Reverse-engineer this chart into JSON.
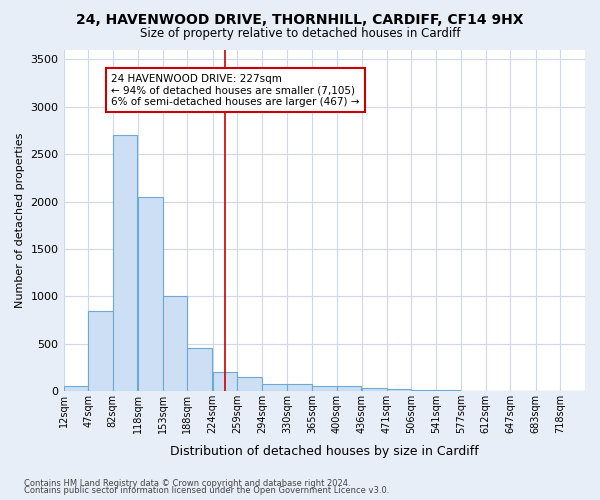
{
  "title1": "24, HAVENWOOD DRIVE, THORNHILL, CARDIFF, CF14 9HX",
  "title2": "Size of property relative to detached houses in Cardiff",
  "xlabel": "Distribution of detached houses by size in Cardiff",
  "ylabel": "Number of detached properties",
  "footnote1": "Contains HM Land Registry data © Crown copyright and database right 2024.",
  "footnote2": "Contains public sector information licensed under the Open Government Licence v3.0.",
  "annotation_line1": "24 HAVENWOOD DRIVE: 227sqm",
  "annotation_line2": "← 94% of detached houses are smaller (7,105)",
  "annotation_line3": "6% of semi-detached houses are larger (467) →",
  "bar_color": "#ccdff5",
  "bar_edge_color": "#6aaad4",
  "vline_color": "#cc0000",
  "vline_x": 224,
  "categories": [
    "12sqm",
    "47sqm",
    "82sqm",
    "118sqm",
    "153sqm",
    "188sqm",
    "224sqm",
    "259sqm",
    "294sqm",
    "330sqm",
    "365sqm",
    "400sqm",
    "436sqm",
    "471sqm",
    "506sqm",
    "541sqm",
    "577sqm",
    "612sqm",
    "647sqm",
    "683sqm",
    "718sqm"
  ],
  "bin_edges": [
    12,
    47,
    82,
    118,
    153,
    188,
    224,
    259,
    294,
    330,
    365,
    400,
    436,
    471,
    506,
    541,
    577,
    612,
    647,
    683,
    718
  ],
  "bin_width": 35,
  "values": [
    55,
    850,
    2700,
    2050,
    1000,
    450,
    200,
    150,
    75,
    75,
    55,
    50,
    30,
    20,
    10,
    8,
    5,
    3,
    2,
    2,
    2
  ],
  "ylim": [
    0,
    3600
  ],
  "yticks": [
    0,
    500,
    1000,
    1500,
    2000,
    2500,
    3000,
    3500
  ],
  "fig_bg_color": "#e8eef8",
  "plot_bg_color": "#ffffff",
  "grid_color": "#d0d8e8",
  "annotation_box_color": "#cc0000",
  "annotation_bg": "#ffffff"
}
